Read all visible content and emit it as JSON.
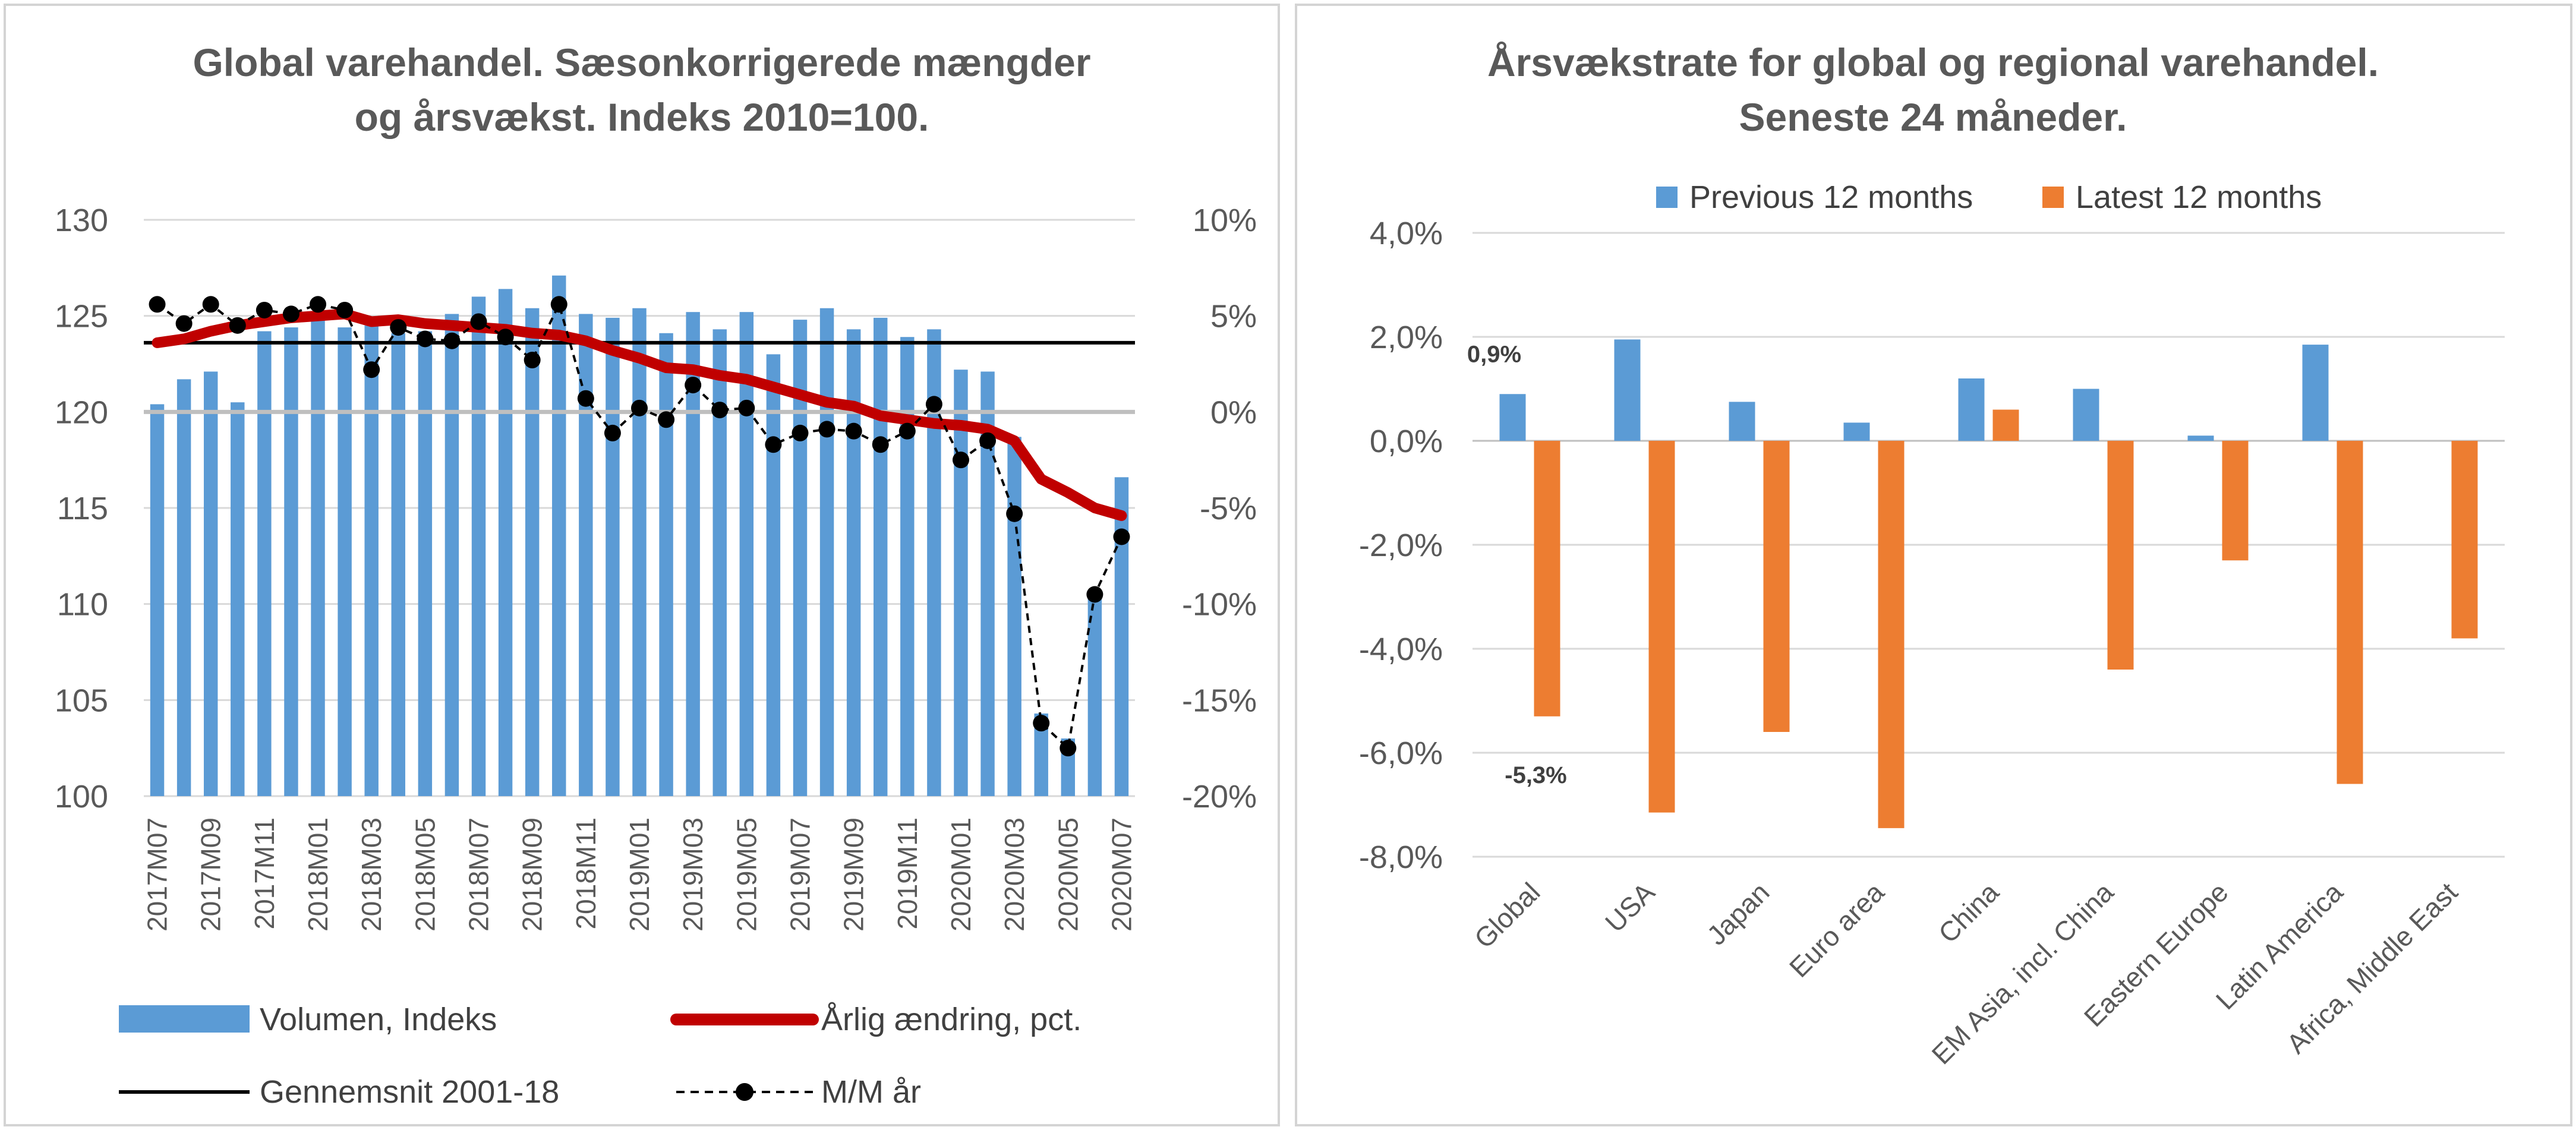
{
  "colors": {
    "bar_blue": "#5b9bd5",
    "line_red": "#c00000",
    "bar_orange": "#ed7d31",
    "avg_black": "#000000",
    "grid": "#d9d9d9",
    "zero_line_grey": "#bfbfbf",
    "text": "#595959"
  },
  "chart_data": [
    {
      "type": "bar",
      "title": "Global varehandel. Sæsonkorrigerede mængder og årsvækst. Indeks 2010=100.",
      "title_lines": [
        "Global varehandel. Sæsonkorrigerede mængder",
        "og årsvækst. Indeks 2010=100."
      ],
      "categories": [
        "2017M07",
        "2017M08",
        "2017M09",
        "2017M10",
        "2017M11",
        "2017M12",
        "2018M01",
        "2018M02",
        "2018M03",
        "2018M04",
        "2018M05",
        "2018M06",
        "2018M07",
        "2018M08",
        "2018M09",
        "2018M10",
        "2018M11",
        "2018M12",
        "2019M01",
        "2019M02",
        "2019M03",
        "2019M04",
        "2019M05",
        "2019M06",
        "2019M07",
        "2019M08",
        "2019M09",
        "2019M10",
        "2019M11",
        "2019M12",
        "2020M01",
        "2020M02",
        "2020M03",
        "2020M04",
        "2020M05",
        "2020M06",
        "2020M07"
      ],
      "tick_labels_shown": [
        "2017M07",
        "2017M09",
        "2017M11",
        "2018M01",
        "2018M03",
        "2018M05",
        "2018M07",
        "2018M09",
        "2018M11",
        "2019M01",
        "2019M03",
        "2019M05",
        "2019M07",
        "2019M09",
        "2019M11",
        "2020M01",
        "2020M03",
        "2020M05",
        "2020M07"
      ],
      "y_left": {
        "ylim": [
          100,
          130
        ],
        "ticks": [
          "130",
          "125",
          "120",
          "115",
          "110",
          "105",
          "100"
        ],
        "tick_values": [
          130,
          125,
          120,
          115,
          110,
          105,
          100
        ]
      },
      "y_right": {
        "ylim": [
          -20,
          10
        ],
        "ticks": [
          "10%",
          "5%",
          "0%",
          "-5%",
          "-10%",
          "-15%",
          "-20%"
        ],
        "tick_values": [
          10,
          5,
          0,
          -5,
          -10,
          -15,
          -20
        ]
      },
      "series": [
        {
          "name": "Volumen, Indeks",
          "kind": "bar",
          "axis": "left",
          "values": [
            120.4,
            121.7,
            122.1,
            120.5,
            124.2,
            124.4,
            125.1,
            124.4,
            124.5,
            124.1,
            124.2,
            125.1,
            126.0,
            126.4,
            125.4,
            127.1,
            125.1,
            124.9,
            125.4,
            124.1,
            125.2,
            124.3,
            125.2,
            123.0,
            124.8,
            125.4,
            124.3,
            124.9,
            123.9,
            124.3,
            122.2,
            122.1,
            118.7,
            104.3,
            103.0,
            110.4,
            116.6
          ]
        },
        {
          "name": "Årlig ændring, pct.",
          "kind": "line",
          "axis": "right",
          "values": [
            3.6,
            3.8,
            4.2,
            4.5,
            4.7,
            4.9,
            5.0,
            5.1,
            4.7,
            4.8,
            4.6,
            4.5,
            4.4,
            4.3,
            4.1,
            4.0,
            3.7,
            3.2,
            2.8,
            2.3,
            2.2,
            1.9,
            1.7,
            1.3,
            0.9,
            0.5,
            0.3,
            -0.2,
            -0.4,
            -0.6,
            -0.7,
            -0.9,
            -1.5,
            -3.5,
            -4.2,
            -5.0,
            -5.4
          ]
        },
        {
          "name": "Gennemsnit 2001-18",
          "kind": "line",
          "axis": "right",
          "values": [
            3.6,
            3.6,
            3.6,
            3.6,
            3.6,
            3.6,
            3.6,
            3.6,
            3.6,
            3.6,
            3.6,
            3.6,
            3.6,
            3.6,
            3.6,
            3.6,
            3.6,
            3.6,
            3.6,
            3.6,
            3.6,
            3.6,
            3.6,
            3.6,
            3.6,
            3.6,
            3.6,
            3.6,
            3.6,
            3.6,
            3.6,
            3.6,
            3.6,
            3.6,
            3.6,
            3.6,
            3.6
          ]
        },
        {
          "name": "M/M år",
          "kind": "line-marker",
          "axis": "right",
          "values": [
            5.6,
            4.6,
            5.6,
            4.5,
            5.3,
            5.1,
            5.6,
            5.3,
            2.2,
            4.4,
            3.8,
            3.7,
            4.7,
            3.9,
            2.7,
            5.6,
            0.7,
            -1.1,
            0.2,
            -0.4,
            1.4,
            0.1,
            0.2,
            -1.7,
            -1.1,
            -0.9,
            -1.0,
            -1.7,
            -1.0,
            0.4,
            -2.5,
            -1.5,
            -5.3,
            -16.2,
            -17.5,
            -9.5,
            -6.5
          ]
        }
      ],
      "legend": {
        "placement": "bottom",
        "entries": [
          "Volumen, Indeks",
          "Årlig ændring, pct.",
          "Gennemsnit 2001-18",
          "M/M år"
        ]
      },
      "grid": true
    },
    {
      "type": "bar",
      "title": "Årsvækstrate for global og regional varehandel. Seneste 24 måneder.",
      "title_lines": [
        "Årsvækstrate for global og regional varehandel.",
        "Seneste 24 måneder."
      ],
      "categories": [
        "Global",
        "USA",
        "Japan",
        "Euro area",
        "China",
        "EM Asia, incl. China",
        "Eastern Europe",
        "Latin America",
        "Africa, Middle East"
      ],
      "ylim": [
        -8.0,
        4.0
      ],
      "ticks": [
        "4,0%",
        "2,0%",
        "0,0%",
        "-2,0%",
        "-4,0%",
        "-6,0%",
        "-8,0%"
      ],
      "tick_values": [
        4,
        2,
        0,
        -2,
        -4,
        -6,
        -8
      ],
      "series": [
        {
          "name": "Previous 12 months",
          "values": [
            0.9,
            1.95,
            0.75,
            0.35,
            1.2,
            1.0,
            0.1,
            1.85,
            0.0
          ]
        },
        {
          "name": "Latest 12 months",
          "values": [
            -5.3,
            -7.15,
            -5.6,
            -7.45,
            0.6,
            -4.4,
            -2.3,
            -6.6,
            -3.8
          ]
        }
      ],
      "data_labels": {
        "previous_global": "0,9%",
        "latest_global": "-5,3%"
      },
      "legend": {
        "placement": "top",
        "entries": [
          "Previous 12 months",
          "Latest 12 months"
        ]
      },
      "grid": true
    }
  ]
}
